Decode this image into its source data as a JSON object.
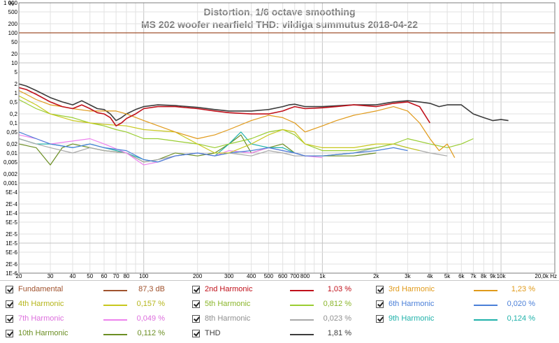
{
  "chart_data": {
    "type": "line",
    "title": "Distortion, 1/6 octave smoothing",
    "subtitle": "MS 202 woofer nearfield THD: vildiga summutus 2018-04-22",
    "y_unit_label": "%",
    "x_unit_label": "20,0k Hz",
    "xlim": [
      20,
      20000
    ],
    "ylim": [
      1e-06,
      1000
    ],
    "x_scale": "log",
    "y_scale": "log",
    "grid": true,
    "x_tick_labels": [
      {
        "v": 20,
        "t": "20"
      },
      {
        "v": 30,
        "t": "30"
      },
      {
        "v": 40,
        "t": "40"
      },
      {
        "v": 50,
        "t": "50"
      },
      {
        "v": 60,
        "t": "60"
      },
      {
        "v": 70,
        "t": "70"
      },
      {
        "v": 80,
        "t": "80"
      },
      {
        "v": 100,
        "t": "100"
      },
      {
        "v": 200,
        "t": "200"
      },
      {
        "v": 300,
        "t": "300"
      },
      {
        "v": 400,
        "t": "400"
      },
      {
        "v": 500,
        "t": "500"
      },
      {
        "v": 600,
        "t": "600"
      },
      {
        "v": 700,
        "t": "700"
      },
      {
        "v": 800,
        "t": "800"
      },
      {
        "v": 1000,
        "t": "1k"
      },
      {
        "v": 2000,
        "t": "2k"
      },
      {
        "v": 3000,
        "t": "3k"
      },
      {
        "v": 4000,
        "t": "4k"
      },
      {
        "v": 5000,
        "t": "5k"
      },
      {
        "v": 6000,
        "t": "6k"
      },
      {
        "v": 7000,
        "t": "7k"
      },
      {
        "v": 8000,
        "t": "8k"
      },
      {
        "v": 9000,
        "t": "9k"
      },
      {
        "v": 10000,
        "t": "10k"
      }
    ],
    "y_tick_labels": [
      {
        "v": 1000,
        "t": "1 000"
      },
      {
        "v": 500,
        "t": "500"
      },
      {
        "v": 200,
        "t": "200"
      },
      {
        "v": 100,
        "t": "100"
      },
      {
        "v": 50,
        "t": "50"
      },
      {
        "v": 20,
        "t": "20"
      },
      {
        "v": 10,
        "t": "10"
      },
      {
        "v": 5,
        "t": "5"
      },
      {
        "v": 2,
        "t": "2"
      },
      {
        "v": 1,
        "t": "1"
      },
      {
        "v": 0.5,
        "t": "0,5"
      },
      {
        "v": 0.2,
        "t": "0,2"
      },
      {
        "v": 0.1,
        "t": "0,1"
      },
      {
        "v": 0.05,
        "t": "0,05"
      },
      {
        "v": 0.02,
        "t": "0,02"
      },
      {
        "v": 0.01,
        "t": "0,01"
      },
      {
        "v": 0.005,
        "t": "0,005"
      },
      {
        "v": 0.002,
        "t": "0,002"
      },
      {
        "v": 0.001,
        "t": "0,001"
      },
      {
        "v": 0.0005,
        "t": "5E-4"
      },
      {
        "v": 0.0002,
        "t": "2E-4"
      },
      {
        "v": 0.0001,
        "t": "1E-4"
      },
      {
        "v": 5e-05,
        "t": "5E-5"
      },
      {
        "v": 2e-05,
        "t": "2E-5"
      },
      {
        "v": 1e-05,
        "t": "1E-5"
      },
      {
        "v": 5e-06,
        "t": "5E-6"
      },
      {
        "v": 2e-06,
        "t": "2E-6"
      },
      {
        "v": 1e-06,
        "t": "1E-6"
      }
    ],
    "series": [
      {
        "name": "Fundamental",
        "value": "87,3 dB",
        "color": "#a0522d",
        "x": [
          20,
          20000
        ],
        "y": [
          100,
          100
        ]
      },
      {
        "name": "2nd Harmonic",
        "value": "1,03 %",
        "color": "#c0101a",
        "x": [
          20,
          22,
          25,
          30,
          35,
          40,
          45,
          50,
          55,
          60,
          65,
          70,
          75,
          80,
          90,
          100,
          120,
          150,
          200,
          250,
          300,
          400,
          500,
          600,
          650,
          700,
          800,
          1000,
          1200,
          1500,
          2000,
          2500,
          3000,
          3500,
          4000
        ],
        "y": [
          1.5,
          1.3,
          0.9,
          0.5,
          0.35,
          0.3,
          0.4,
          0.3,
          0.22,
          0.2,
          0.15,
          0.08,
          0.1,
          0.14,
          0.2,
          0.3,
          0.35,
          0.35,
          0.3,
          0.25,
          0.22,
          0.2,
          0.2,
          0.25,
          0.3,
          0.35,
          0.3,
          0.32,
          0.35,
          0.4,
          0.35,
          0.45,
          0.5,
          0.35,
          0.1
        ]
      },
      {
        "name": "3rd Harmonic",
        "value": "1,23 %",
        "color": "#e09a1a",
        "x": [
          20,
          22,
          25,
          30,
          35,
          40,
          50,
          60,
          70,
          80,
          100,
          150,
          200,
          250,
          300,
          400,
          500,
          600,
          700,
          800,
          1000,
          1200,
          1500,
          2000,
          2500,
          3000,
          3500,
          4000,
          4500,
          5000,
          5500
        ],
        "y": [
          1.2,
          0.9,
          0.6,
          0.4,
          0.35,
          0.3,
          0.25,
          0.25,
          0.25,
          0.2,
          0.12,
          0.05,
          0.03,
          0.04,
          0.06,
          0.12,
          0.18,
          0.15,
          0.1,
          0.05,
          0.08,
          0.12,
          0.18,
          0.25,
          0.35,
          0.25,
          0.1,
          0.03,
          0.012,
          0.02,
          0.007
        ]
      },
      {
        "name": "4th Harmonic",
        "value": "0,157 %",
        "color": "#c8c81e",
        "x": [
          20,
          25,
          30,
          40,
          50,
          60,
          80,
          100,
          150,
          200,
          250,
          300,
          400,
          500,
          600,
          700,
          800,
          1000,
          1500,
          2000,
          2500,
          3000,
          3500
        ],
        "y": [
          0.8,
          0.4,
          0.2,
          0.12,
          0.1,
          0.09,
          0.08,
          0.06,
          0.05,
          0.02,
          0.01,
          0.01,
          0.02,
          0.04,
          0.06,
          0.05,
          0.02,
          0.015,
          0.015,
          0.02,
          0.02,
          0.015,
          0.012
        ]
      },
      {
        "name": "5th Harmonic",
        "value": "0,812 %",
        "color": "#9acd32",
        "x": [
          20,
          25,
          30,
          40,
          50,
          60,
          70,
          80,
          100,
          120,
          150,
          200,
          250,
          300,
          400,
          500,
          600,
          700,
          800,
          1000,
          1500,
          2000,
          2500,
          3000,
          4000,
          5000,
          6000,
          7000
        ],
        "y": [
          0.6,
          0.3,
          0.2,
          0.15,
          0.1,
          0.08,
          0.06,
          0.05,
          0.03,
          0.03,
          0.025,
          0.02,
          0.015,
          0.02,
          0.03,
          0.05,
          0.06,
          0.04,
          0.02,
          0.012,
          0.012,
          0.015,
          0.02,
          0.03,
          0.02,
          0.015,
          0.02,
          0.03
        ]
      },
      {
        "name": "6th Harmonic",
        "value": "0,020 %",
        "color": "#4a7fd8",
        "x": [
          20,
          25,
          30,
          40,
          50,
          60,
          80,
          100,
          120,
          150,
          200,
          250,
          300,
          400,
          500,
          600,
          700,
          800,
          1000,
          1500,
          2000,
          2500,
          3000
        ],
        "y": [
          0.05,
          0.03,
          0.02,
          0.015,
          0.02,
          0.015,
          0.012,
          0.006,
          0.005,
          0.008,
          0.01,
          0.008,
          0.01,
          0.012,
          0.015,
          0.012,
          0.01,
          0.008,
          0.008,
          0.01,
          0.012,
          0.015,
          0.012
        ]
      },
      {
        "name": "7th Harmonic",
        "value": "0,049 %",
        "color": "#ee82ee",
        "x": [
          20,
          25,
          30,
          40,
          50,
          60,
          80,
          100,
          120,
          150,
          200,
          250,
          300,
          400,
          500,
          600,
          700,
          800,
          1000
        ],
        "y": [
          0.04,
          0.03,
          0.02,
          0.025,
          0.03,
          0.02,
          0.01,
          0.004,
          0.005,
          0.008,
          0.01,
          0.008,
          0.012,
          0.01,
          0.015,
          0.012,
          0.01,
          0.008,
          0.007
        ]
      },
      {
        "name": "8th Harmonic",
        "value": "0,023 %",
        "color": "#a9a9a9",
        "x": [
          20,
          25,
          30,
          40,
          50,
          60,
          80,
          100,
          120,
          150,
          200,
          250,
          300,
          400,
          500,
          600,
          700,
          800,
          1000,
          1500,
          2000,
          2500,
          3000,
          4000,
          5000
        ],
        "y": [
          0.03,
          0.02,
          0.015,
          0.01,
          0.015,
          0.012,
          0.01,
          0.005,
          0.006,
          0.008,
          0.01,
          0.008,
          0.01,
          0.008,
          0.012,
          0.01,
          0.008,
          0.008,
          0.008,
          0.01,
          0.015,
          0.02,
          0.015,
          0.01,
          0.008
        ]
      },
      {
        "name": "9th Harmonic",
        "value": "0,124 %",
        "color": "#20b2aa",
        "x": [
          20,
          25,
          30,
          40,
          50,
          60,
          80,
          100,
          120,
          150,
          200,
          250,
          300,
          350,
          400,
          500,
          600,
          700,
          800,
          1000,
          1500,
          2000,
          2500,
          3000
        ],
        "y": [
          0.03,
          0.02,
          0.02,
          0.015,
          0.02,
          0.015,
          0.01,
          0.006,
          0.005,
          0.008,
          0.01,
          0.008,
          0.02,
          0.05,
          0.02,
          0.015,
          0.015,
          0.01,
          0.008,
          0.008,
          0.01,
          0.015,
          0.02,
          0.015
        ]
      },
      {
        "name": "10th Harmonic",
        "value": "0,112 %",
        "color": "#6b8e23",
        "x": [
          20,
          25,
          30,
          35,
          40,
          50,
          60,
          80,
          100,
          120,
          150,
          200,
          250,
          300,
          350,
          400,
          500,
          600,
          700,
          800,
          1000,
          1500,
          2000
        ],
        "y": [
          0.02,
          0.015,
          0.004,
          0.015,
          0.02,
          0.015,
          0.012,
          0.01,
          0.005,
          0.006,
          0.01,
          0.008,
          0.01,
          0.02,
          0.04,
          0.01,
          0.015,
          0.02,
          0.01,
          0.008,
          0.008,
          0.008,
          0.01
        ]
      },
      {
        "name": "THD",
        "value": "1,81 %",
        "color": "#3c3c3c",
        "x": [
          20,
          22,
          25,
          30,
          35,
          40,
          45,
          50,
          55,
          60,
          65,
          70,
          75,
          80,
          90,
          100,
          120,
          150,
          200,
          250,
          300,
          400,
          500,
          600,
          650,
          700,
          800,
          1000,
          1500,
          2000,
          2500,
          3000,
          3500,
          4000,
          4500,
          5000,
          6000,
          7000,
          8000,
          9000,
          10000,
          11000
        ],
        "y": [
          2,
          1.7,
          1.2,
          0.7,
          0.5,
          0.4,
          0.55,
          0.4,
          0.3,
          0.28,
          0.2,
          0.12,
          0.15,
          0.2,
          0.28,
          0.35,
          0.4,
          0.38,
          0.33,
          0.28,
          0.25,
          0.25,
          0.28,
          0.35,
          0.4,
          0.42,
          0.35,
          0.35,
          0.4,
          0.4,
          0.5,
          0.55,
          0.5,
          0.45,
          0.35,
          0.4,
          0.4,
          0.2,
          0.15,
          0.12,
          0.13,
          0.12
        ]
      }
    ]
  }
}
